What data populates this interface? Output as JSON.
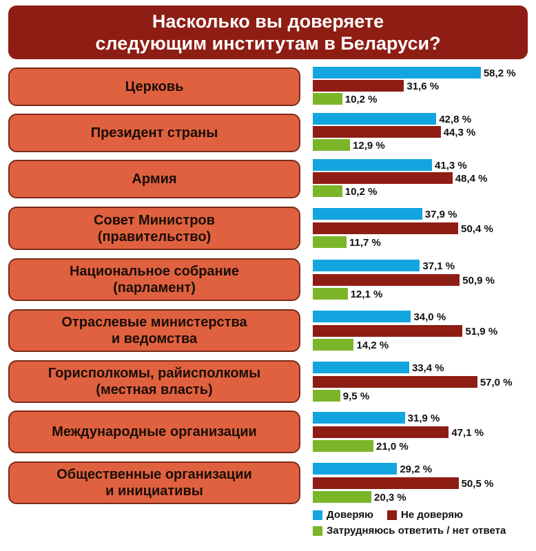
{
  "chart_data": {
    "type": "bar",
    "orientation": "horizontal",
    "title": [
      "Насколько вы доверяете",
      "следующим институтам в Беларуси?"
    ],
    "categories": [
      [
        "Церковь"
      ],
      [
        "Президент страны"
      ],
      [
        "Армия"
      ],
      [
        "Совет Министров",
        "(правительство)"
      ],
      [
        "Национальное собрание",
        "(парламент)"
      ],
      [
        "Отраслевые министерства",
        "и ведомства"
      ],
      [
        "Горисполкомы, райисполкомы",
        "(местная власть)"
      ],
      [
        "Международные организации"
      ],
      [
        "Общественные организации",
        "и инициативы"
      ]
    ],
    "series": [
      {
        "name": "Доверяю",
        "color": "#12a5e0",
        "values": [
          58.2,
          42.8,
          41.3,
          37.9,
          37.1,
          34.0,
          33.4,
          31.9,
          29.2
        ]
      },
      {
        "name": "Не доверяю",
        "color": "#8e1d13",
        "values": [
          31.6,
          44.3,
          48.4,
          50.4,
          50.9,
          51.9,
          57.0,
          47.1,
          50.5
        ]
      },
      {
        "name": "Затрудняюсь ответить / нет ответа",
        "color": "#7bb528",
        "values": [
          10.2,
          12.9,
          10.2,
          11.7,
          12.1,
          14.2,
          9.5,
          21.0,
          20.3
        ]
      }
    ],
    "value_suffix": " %",
    "xlim": [
      0,
      60
    ],
    "legend": "bottom-right"
  }
}
